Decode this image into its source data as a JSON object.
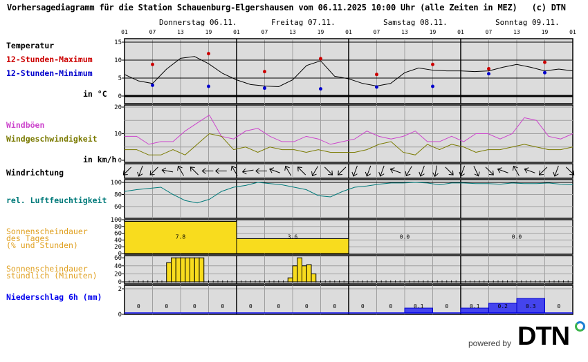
{
  "header": {
    "title": "Vorhersagediagramm für die Station Schauenburg-Elgershausen vom 06.11.2025 10:00 Uhr (alle Zeiten in MEZ)   (c) DTN",
    "days": [
      "Donnerstag 06.11.",
      "Freitag 07.11.",
      "Samstag 08.11.",
      "Sonntag 09.11."
    ],
    "hour_ticks": [
      "01",
      "07",
      "13",
      "19",
      "01",
      "07",
      "13",
      "19",
      "01",
      "07",
      "13",
      "19",
      "01",
      "07",
      "13",
      "19",
      "01"
    ]
  },
  "labels": {
    "temperature": "Temperatur",
    "max12": "12-Stunden-Maximum",
    "min12": "12-Stunden-Minimum",
    "temp_unit": "in °C",
    "gusts": "Windböen",
    "wind_speed": "Windgeschwindigkeit",
    "wind_unit": "in km/h",
    "wind_dir": "Windrichtung",
    "humidity": "rel. Luftfeuchtigkeit",
    "sun_daily_1": "Sonnenscheindauer",
    "sun_daily_2": "des Tages",
    "sun_daily_3": "(% und Stunden)",
    "sun_hourly_1": "Sonnenscheindauer",
    "sun_hourly_2": "stündlich (Minuten)",
    "precip": "Niederschlag 6h (mm)"
  },
  "colors": {
    "temp_line": "#000000",
    "max": "#cc0000",
    "min": "#0000cc",
    "gusts": "#cc44cc",
    "wind": "#7a7a00",
    "humidity": "#007a7a",
    "sun": "#f8dc1e",
    "sun_label": "#e0a020",
    "precip": "#4444ee",
    "panel_bg": "#dcdcdc"
  },
  "footer": {
    "powered_by": "powered by",
    "brand": "DTN"
  },
  "chart_data": [
    {
      "type": "line",
      "title": "Temperatur",
      "ylabel": "in °C",
      "ylim": [
        -2,
        17
      ],
      "yticks": [
        0,
        5,
        10,
        15
      ],
      "x_hours_from_start": [
        0,
        3,
        6,
        9,
        12,
        15,
        18,
        21,
        24,
        27,
        30,
        33,
        36,
        39,
        42,
        45,
        48,
        51,
        54,
        57,
        60,
        63,
        66,
        69,
        72,
        75,
        78,
        81,
        84,
        87,
        90,
        93,
        96
      ],
      "temperature": [
        6.0,
        4.2,
        3.5,
        7.5,
        10.5,
        11.0,
        9.0,
        6.3,
        4.5,
        3.2,
        2.8,
        2.6,
        4.5,
        8.5,
        9.8,
        5.5,
        4.8,
        3.5,
        2.8,
        3.5,
        6.5,
        7.8,
        7.2,
        7.0,
        7.0,
        6.8,
        7.0,
        8.0,
        8.8,
        8.0,
        7.0,
        7.5,
        7.0
      ],
      "max_12h": {
        "hours": [
          6,
          18,
          30,
          42,
          54,
          66,
          78,
          90
        ],
        "values": [
          8.8,
          11.8,
          6.8,
          10.4,
          6.0,
          8.8,
          7.6,
          9.4
        ]
      },
      "min_12h": {
        "hours": [
          6,
          18,
          30,
          42,
          54,
          66,
          78,
          90
        ],
        "values": [
          3.0,
          2.7,
          2.2,
          2.0,
          2.5,
          2.7,
          6.2,
          6.5
        ]
      }
    },
    {
      "type": "line",
      "title": "Wind",
      "ylabel": "in km/h",
      "ylim": [
        0,
        20
      ],
      "yticks": [
        0,
        10,
        20
      ],
      "series": [
        {
          "name": "Windböen",
          "values": [
            9,
            9,
            6,
            7,
            7,
            11,
            14,
            17,
            9,
            8,
            11,
            12,
            9,
            7,
            7,
            9,
            8,
            6,
            7,
            8,
            11,
            9,
            8,
            9,
            11,
            7,
            7,
            9,
            7,
            10,
            10,
            8,
            10,
            16,
            15,
            9,
            8,
            10
          ]
        },
        {
          "name": "Windgeschwindigkeit",
          "values": [
            4,
            4,
            2,
            2,
            4,
            2,
            6,
            10,
            9,
            4,
            5,
            3,
            5,
            4,
            4,
            3,
            4,
            3,
            3,
            3,
            4,
            6,
            7,
            3,
            2,
            6,
            4,
            6,
            5,
            3,
            4,
            4,
            5,
            6,
            5,
            4,
            4,
            5
          ]
        }
      ]
    },
    {
      "type": "line",
      "title": "rel. Luftfeuchtigkeit",
      "ylim": [
        50,
        100
      ],
      "yticks": [
        60,
        80,
        100
      ],
      "values": [
        85,
        88,
        90,
        92,
        80,
        70,
        66,
        72,
        85,
        92,
        95,
        100,
        98,
        96,
        92,
        88,
        78,
        76,
        85,
        92,
        94,
        97,
        99,
        99,
        100,
        99,
        96,
        99,
        99,
        98,
        98,
        97,
        99,
        98,
        98,
        99,
        97,
        96
      ]
    },
    {
      "type": "bar",
      "title": "Sonnenscheindauer des Tages (% und Stunden)",
      "categories": [
        "06.11.",
        "07.11.",
        "08.11.",
        "09.11."
      ],
      "percent": [
        95,
        44,
        0,
        0
      ],
      "hours_labels": [
        "7.8",
        "3.6",
        "0.0",
        "0.0"
      ],
      "ylim": [
        0,
        100
      ],
      "yticks": [
        0,
        20,
        40,
        60,
        80,
        100
      ]
    },
    {
      "type": "bar",
      "title": "Sonnenscheindauer stündlich (Minuten)",
      "ylim": [
        0,
        60
      ],
      "yticks": [
        0,
        20,
        40,
        60
      ],
      "bars": [
        {
          "hour": 9,
          "minutes": 48
        },
        {
          "hour": 10,
          "minutes": 60
        },
        {
          "hour": 11,
          "minutes": 60
        },
        {
          "hour": 12,
          "minutes": 60
        },
        {
          "hour": 13,
          "minutes": 60
        },
        {
          "hour": 14,
          "minutes": 60
        },
        {
          "hour": 15,
          "minutes": 60
        },
        {
          "hour": 16,
          "minutes": 60
        },
        {
          "hour": 35,
          "minutes": 10
        },
        {
          "hour": 36,
          "minutes": 40
        },
        {
          "hour": 37,
          "minutes": 60
        },
        {
          "hour": 38,
          "minutes": 40
        },
        {
          "hour": 39,
          "minutes": 43
        },
        {
          "hour": 40,
          "minutes": 20
        }
      ]
    },
    {
      "type": "bar",
      "title": "Niederschlag 6h (mm)",
      "ylim": [
        0,
        2
      ],
      "yticks": [
        0,
        2
      ],
      "categories": [
        "06.11. 01-07",
        "07-13",
        "13-19",
        "19-01",
        "07.11. 01-07",
        "07-13",
        "13-19",
        "19-01",
        "08.11. 01-07",
        "07-13",
        "13-19",
        "19-01",
        "09.11. 01-07",
        "07-13",
        "13-19",
        "19-01"
      ],
      "values": [
        0,
        0,
        0,
        0,
        0,
        0,
        0,
        0,
        0,
        0,
        0.1,
        0,
        0.1,
        0.2,
        0.3,
        0
      ],
      "value_labels": [
        "0",
        "0",
        "0",
        "0",
        "0",
        "0",
        "0",
        "0",
        "0",
        "0",
        "0.1",
        "0",
        "0.1",
        "0.2",
        "0.3",
        "0"
      ]
    }
  ],
  "wind_directions_deg": [
    45,
    20,
    45,
    100,
    150,
    135,
    90,
    90,
    150,
    80,
    90,
    110,
    150,
    135,
    30,
    315,
    45,
    20,
    20,
    20,
    110,
    30,
    20,
    10,
    315,
    20,
    335,
    315,
    110,
    150,
    110,
    45,
    20,
    315
  ]
}
